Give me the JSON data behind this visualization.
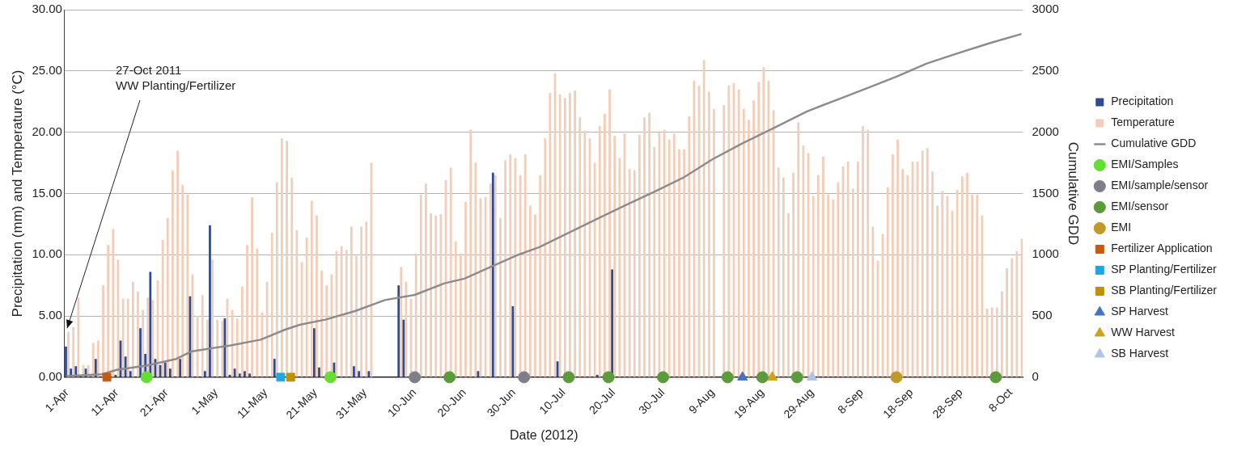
{
  "chart_data": {
    "type": "bar",
    "xlabel": "Date (2012)",
    "ylabel": "Precipitation (mm) and Temperature (°C)",
    "y2label": "Cumulative GDD",
    "grid": "y",
    "legend": "right",
    "x": [
      "2012-04-01",
      "2012-04-02",
      "2012-04-03",
      "2012-04-04",
      "2012-04-05",
      "2012-04-06",
      "2012-04-07",
      "2012-04-08",
      "2012-04-09",
      "2012-04-10",
      "2012-04-11",
      "2012-04-12",
      "2012-04-13",
      "2012-04-14",
      "2012-04-15",
      "2012-04-16",
      "2012-04-17",
      "2012-04-18",
      "2012-04-19",
      "2012-04-20",
      "2012-04-21",
      "2012-04-22",
      "2012-04-23",
      "2012-04-24",
      "2012-04-25",
      "2012-04-26",
      "2012-04-27",
      "2012-04-28",
      "2012-04-29",
      "2012-04-30",
      "2012-05-01",
      "2012-05-02",
      "2012-05-03",
      "2012-05-04",
      "2012-05-05",
      "2012-05-06",
      "2012-05-07",
      "2012-05-08",
      "2012-05-09",
      "2012-05-10",
      "2012-05-11",
      "2012-05-12",
      "2012-05-13",
      "2012-05-14",
      "2012-05-15",
      "2012-05-16",
      "2012-05-17",
      "2012-05-18",
      "2012-05-19",
      "2012-05-20",
      "2012-05-21",
      "2012-05-22",
      "2012-05-23",
      "2012-05-24",
      "2012-05-25",
      "2012-05-26",
      "2012-05-27",
      "2012-05-28",
      "2012-05-29",
      "2012-05-30",
      "2012-05-31",
      "2012-06-01",
      "2012-06-02",
      "2012-06-03",
      "2012-06-04",
      "2012-06-05",
      "2012-06-06",
      "2012-06-07",
      "2012-06-08",
      "2012-06-09",
      "2012-06-10",
      "2012-06-11",
      "2012-06-12",
      "2012-06-13",
      "2012-06-14",
      "2012-06-15",
      "2012-06-16",
      "2012-06-17",
      "2012-06-18",
      "2012-06-19",
      "2012-06-20",
      "2012-06-21",
      "2012-06-22",
      "2012-06-23",
      "2012-06-24",
      "2012-06-25",
      "2012-06-26",
      "2012-06-27",
      "2012-06-28",
      "2012-06-29",
      "2012-06-30",
      "2012-07-01",
      "2012-07-02",
      "2012-07-03",
      "2012-07-04",
      "2012-07-05",
      "2012-07-06",
      "2012-07-07",
      "2012-07-08",
      "2012-07-09",
      "2012-07-10",
      "2012-07-11",
      "2012-07-12",
      "2012-07-13",
      "2012-07-14",
      "2012-07-15",
      "2012-07-16",
      "2012-07-17",
      "2012-07-18",
      "2012-07-19",
      "2012-07-20",
      "2012-07-21",
      "2012-07-22",
      "2012-07-23",
      "2012-07-24",
      "2012-07-25",
      "2012-07-26",
      "2012-07-27",
      "2012-07-28",
      "2012-07-29",
      "2012-07-30",
      "2012-07-31",
      "2012-08-01",
      "2012-08-02",
      "2012-08-03",
      "2012-08-04",
      "2012-08-05",
      "2012-08-06",
      "2012-08-07",
      "2012-08-08",
      "2012-08-09",
      "2012-08-10",
      "2012-08-11",
      "2012-08-12",
      "2012-08-13",
      "2012-08-14",
      "2012-08-15",
      "2012-08-16",
      "2012-08-17",
      "2012-08-18",
      "2012-08-19",
      "2012-08-20",
      "2012-08-21",
      "2012-08-22",
      "2012-08-23",
      "2012-08-24",
      "2012-08-25",
      "2012-08-26",
      "2012-08-27",
      "2012-08-28",
      "2012-08-29",
      "2012-08-30",
      "2012-08-31",
      "2012-09-01",
      "2012-09-02",
      "2012-09-03",
      "2012-09-04",
      "2012-09-05",
      "2012-09-06",
      "2012-09-07",
      "2012-09-08",
      "2012-09-09",
      "2012-09-10",
      "2012-09-11",
      "2012-09-12",
      "2012-09-13",
      "2012-09-14",
      "2012-09-15",
      "2012-09-16",
      "2012-09-17",
      "2012-09-18",
      "2012-09-19",
      "2012-09-20",
      "2012-09-21",
      "2012-09-22",
      "2012-09-23",
      "2012-09-24",
      "2012-09-25",
      "2012-09-26",
      "2012-09-27",
      "2012-09-28",
      "2012-09-29",
      "2012-09-30",
      "2012-10-01",
      "2012-10-02",
      "2012-10-03",
      "2012-10-04",
      "2012-10-05",
      "2012-10-06",
      "2012-10-07",
      "2012-10-08",
      "2012-10-09",
      "2012-10-10"
    ],
    "xlim": [
      "2012-03-31T12:00",
      "2012-10-10T12:00"
    ],
    "xticks": [
      {
        "value": "2012-04-01",
        "label": "1-Apr"
      },
      {
        "value": "2012-04-11",
        "label": "11-Apr"
      },
      {
        "value": "2012-04-21",
        "label": "21-Apr"
      },
      {
        "value": "2012-05-01",
        "label": "1-May"
      },
      {
        "value": "2012-05-11",
        "label": "11-May"
      },
      {
        "value": "2012-05-21",
        "label": "21-May"
      },
      {
        "value": "2012-05-31",
        "label": "31-May"
      },
      {
        "value": "2012-06-10",
        "label": "10-Jun"
      },
      {
        "value": "2012-06-20",
        "label": "20-Jun"
      },
      {
        "value": "2012-06-30",
        "label": "30-Jun"
      },
      {
        "value": "2012-07-10",
        "label": "10-Jul"
      },
      {
        "value": "2012-07-20",
        "label": "20-Jul"
      },
      {
        "value": "2012-07-30",
        "label": "30-Jul"
      },
      {
        "value": "2012-08-09",
        "label": "9-Aug"
      },
      {
        "value": "2012-08-19",
        "label": "19-Aug"
      },
      {
        "value": "2012-08-29",
        "label": "29-Aug"
      },
      {
        "value": "2012-09-08",
        "label": "8-Sep"
      },
      {
        "value": "2012-09-18",
        "label": "18-Sep"
      },
      {
        "value": "2012-09-28",
        "label": "28-Sep"
      },
      {
        "value": "2012-10-08",
        "label": "8-Oct"
      }
    ],
    "ylim": [
      0,
      30
    ],
    "yticks": [
      {
        "value": 0,
        "label": "0.00"
      },
      {
        "value": 5,
        "label": "5.00"
      },
      {
        "value": 10,
        "label": "10.00"
      },
      {
        "value": 15,
        "label": "15.00"
      },
      {
        "value": 20,
        "label": "20.00"
      },
      {
        "value": 25,
        "label": "25.00"
      },
      {
        "value": 30,
        "label": "30.00"
      }
    ],
    "y2lim": [
      0,
      3000
    ],
    "y2ticks": [
      0,
      500,
      1000,
      1500,
      2000,
      2500,
      3000
    ],
    "annotations": [
      {
        "text": "27-Oct 2011\nWW Planting/Fertilizer",
        "x": "2012-04-01",
        "y": 4
      }
    ],
    "series": [
      {
        "name": "Precipitation",
        "color": "#2f4b8f",
        "values": [
          2.5,
          0.7,
          0.9,
          0,
          0.7,
          0.1,
          1.5,
          0,
          0,
          0,
          0.2,
          3.0,
          1.7,
          0.5,
          0,
          4.0,
          1.9,
          8.6,
          1.5,
          1.0,
          1.2,
          0.7,
          0,
          1.5,
          0,
          6.6,
          0,
          0,
          0.5,
          12.4,
          0,
          0,
          4.8,
          0.2,
          0.7,
          0.3,
          0.5,
          0.3,
          0,
          0,
          0,
          0,
          1.5,
          0,
          0,
          0,
          0,
          0,
          0,
          0,
          4.0,
          0.8,
          0,
          0,
          1.2,
          0,
          0,
          0,
          0.9,
          0.5,
          0,
          0.5,
          0,
          0,
          0,
          0,
          0,
          7.5,
          4.7,
          null,
          0,
          0,
          0,
          0,
          0,
          0,
          0,
          0,
          0,
          0,
          0,
          0,
          0,
          0.5,
          0,
          0,
          16.7,
          0,
          0,
          0,
          5.8,
          0,
          0,
          0,
          0,
          0,
          0,
          0,
          0,
          1.3,
          0,
          0,
          0,
          0,
          0,
          0,
          0,
          0.2,
          0,
          0,
          8.8,
          0,
          0,
          0,
          0,
          0,
          0,
          0,
          0,
          0,
          0,
          0,
          0,
          0,
          0,
          0,
          0,
          0,
          0,
          0,
          0,
          0,
          0,
          0,
          0,
          0,
          0,
          0,
          0,
          0,
          0,
          0,
          0,
          0,
          0,
          0,
          0,
          0,
          0,
          0,
          0,
          0,
          0,
          0,
          0,
          0,
          0,
          0,
          0,
          0,
          0,
          0,
          0,
          0,
          0,
          0,
          0,
          0,
          0,
          0,
          0,
          0,
          0,
          0,
          0,
          0,
          0,
          0,
          0,
          0,
          0,
          0,
          0,
          0,
          0,
          0,
          0,
          0,
          0,
          0,
          0,
          0,
          0
        ]
      },
      {
        "name": "Temperature",
        "color": "#f2cdb8",
        "values": [
          3.7,
          4.1,
          6.5,
          1.0,
          1.0,
          2.8,
          3.0,
          7.5,
          10.8,
          12.1,
          9.6,
          6.4,
          6.4,
          7.8,
          7.0,
          5.5,
          6.5,
          6.3,
          7.9,
          11.2,
          13.0,
          16.9,
          18.5,
          15.7,
          14.9,
          8.4,
          5.0,
          6.7,
          4.7,
          9.6,
          4.7,
          4.6,
          6.4,
          5.5,
          4.8,
          7.4,
          10.8,
          14.7,
          10.5,
          5.3,
          7.8,
          11.8,
          15.9,
          19.5,
          19.3,
          16.3,
          12.0,
          9.4,
          11.4,
          14.4,
          13.2,
          8.7,
          7.5,
          8.4,
          10.3,
          10.7,
          10.4,
          12.3,
          9.9,
          12.3,
          12.7,
          17.5,
          null,
          null,
          null,
          null,
          null,
          9.0,
          7.8,
          6.4,
          10.1,
          14.9,
          15.8,
          13.4,
          13.2,
          13.3,
          16.1,
          17.1,
          11.1,
          10.1,
          14.3,
          20.2,
          17.5,
          14.6,
          14.7,
          15.8,
          16.5,
          13.0,
          17.7,
          18.2,
          17.9,
          16.5,
          18.2,
          14.0,
          13.3,
          16.5,
          19.5,
          23.2,
          24.8,
          23.1,
          22.8,
          23.2,
          23.4,
          21.2,
          20.1,
          19.5,
          17.5,
          20.5,
          21.5,
          23.5,
          19.7,
          17.9,
          19.9,
          17.0,
          16.9,
          19.8,
          21.2,
          21.6,
          18.8,
          20.0,
          20.2,
          19.4,
          19.9,
          18.6,
          18.6,
          21.3,
          24.2,
          23.8,
          25.9,
          23.3,
          21.9,
          null,
          22.2,
          23.8,
          24.0,
          23.5,
          21.9,
          21.0,
          22.6,
          24.1,
          25.3,
          24.2,
          21.8,
          17.1,
          16.3,
          13.4,
          16.7,
          20.8,
          18.9,
          18.3,
          14.8,
          16.5,
          18.0,
          14.9,
          14.5,
          15.9,
          17.2,
          17.6,
          15.4,
          17.6,
          20.5,
          20.2,
          12.3,
          9.5,
          11.7,
          15.5,
          18.2,
          19.4,
          17.0,
          16.5,
          17.6,
          17.6,
          18.5,
          18.7,
          16.8,
          14.0,
          15.2,
          14.8,
          13.6,
          15.3,
          16.4,
          16.7,
          14.9,
          14.9,
          13.2,
          5.6,
          5.7,
          5.7,
          7.0,
          8.9,
          9.7,
          10.3,
          11.3
        ]
      },
      {
        "name": "Cumulative GDD",
        "type": "line",
        "axis": "y2",
        "color": "#8c8c8c",
        "marker": "none",
        "line_style": "solid",
        "x": [
          "2012-04-01",
          "2012-04-08",
          "2012-04-11",
          "2012-04-17",
          "2012-04-23",
          "2012-04-26",
          "2012-04-30",
          "2012-05-04",
          "2012-05-10",
          "2012-05-15",
          "2012-05-18",
          "2012-05-23",
          "2012-05-29",
          "2012-06-04",
          "2012-06-10",
          "2012-06-16",
          "2012-06-20",
          "2012-06-25",
          "2012-07-01",
          "2012-07-05",
          "2012-07-11",
          "2012-07-17",
          "2012-07-23",
          "2012-07-28",
          "2012-08-03",
          "2012-08-09",
          "2012-08-15",
          "2012-08-21",
          "2012-08-28",
          "2012-09-03",
          "2012-09-09",
          "2012-09-15",
          "2012-09-21",
          "2012-09-27",
          "2012-10-04",
          "2012-10-10"
        ],
        "values": [
          10,
          24,
          60,
          95,
          150,
          210,
          236,
          260,
          307,
          390,
          430,
          470,
          540,
          630,
          672,
          767,
          805,
          896,
          1002,
          1060,
          1179,
          1297,
          1415,
          1509,
          1627,
          1780,
          1910,
          2028,
          2170,
          2264,
          2358,
          2453,
          2559,
          2640,
          2730,
          2800
        ]
      },
      {
        "name": "EMI/Samples",
        "type": "scatter",
        "marker": "circle",
        "color": "#66dd33",
        "x": [
          "2012-04-17",
          "2012-05-24"
        ],
        "values": [
          0,
          0
        ]
      },
      {
        "name": "EMI/sample/sensor",
        "type": "scatter",
        "marker": "circle",
        "color": "#7f7f8c",
        "x": [
          "2012-06-10",
          "2012-07-02"
        ],
        "values": [
          0,
          0
        ]
      },
      {
        "name": "EMI/sensor",
        "type": "scatter",
        "marker": "circle",
        "color": "#5b9b3c",
        "x": [
          "2012-06-17",
          "2012-07-11",
          "2012-07-19",
          "2012-07-30",
          "2012-08-12",
          "2012-08-19",
          "2012-08-26",
          "2012-10-05"
        ],
        "values": [
          0,
          0,
          0,
          0,
          0,
          0,
          0,
          0
        ]
      },
      {
        "name": "EMI",
        "type": "scatter",
        "marker": "circle",
        "color": "#c09a28",
        "x": [
          "2012-09-15"
        ],
        "values": [
          0
        ]
      },
      {
        "name": "Fertilizer Application",
        "type": "scatter",
        "marker": "square",
        "color": "#c55a11",
        "x": [
          "2012-04-09"
        ],
        "values": [
          0
        ]
      },
      {
        "name": "SP Planting/Fertilizer",
        "type": "scatter",
        "marker": "square",
        "color": "#1fa7e0",
        "x": [
          "2012-05-14"
        ],
        "values": [
          0
        ]
      },
      {
        "name": "SB Planting/Fertilizer",
        "type": "scatter",
        "marker": "square",
        "color": "#bf9000",
        "x": [
          "2012-05-16"
        ],
        "values": [
          0
        ]
      },
      {
        "name": "SP Harvest",
        "type": "scatter",
        "marker": "triangle",
        "color": "#4472c4",
        "x": [
          "2012-08-15"
        ],
        "values": [
          0
        ]
      },
      {
        "name": "WW Harvest",
        "type": "scatter",
        "marker": "triangle",
        "color": "#d1a317",
        "x": [
          "2012-08-21"
        ],
        "values": [
          0
        ]
      },
      {
        "name": "SB Harvest",
        "type": "scatter",
        "marker": "triangle",
        "color": "#aec5e8",
        "x": [
          "2012-08-29"
        ],
        "values": [
          0
        ]
      }
    ]
  }
}
